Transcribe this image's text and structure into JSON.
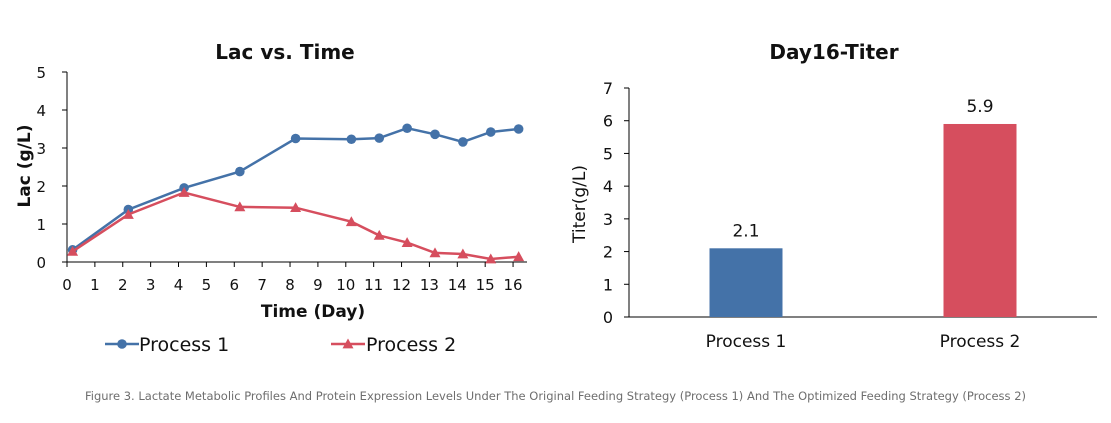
{
  "chart_data": [
    {
      "type": "line",
      "title": "Lac vs. Time",
      "xlabel": "Time (Day)",
      "ylabel": "Lac (g/L)",
      "xlim": [
        0,
        16.5
      ],
      "ylim": [
        0,
        5
      ],
      "xticks": [
        "0",
        "1",
        "2",
        "3",
        "4",
        "5",
        "6",
        "7",
        "8",
        "9",
        "10",
        "11",
        "12",
        "13",
        "14",
        "15",
        "16"
      ],
      "yticks": [
        "0",
        "1",
        "2",
        "3",
        "4",
        "5"
      ],
      "grid": false,
      "legend": "bottom",
      "series": [
        {
          "name": "Process 1",
          "color": "#4472a8",
          "marker": "circle",
          "points": [
            [
              0.2,
              0.32
            ],
            [
              2.2,
              1.38
            ],
            [
              4.2,
              1.95
            ],
            [
              6.2,
              2.38
            ],
            [
              8.2,
              3.25
            ],
            [
              10.2,
              3.23
            ],
            [
              11.2,
              3.26
            ],
            [
              12.2,
              3.52
            ],
            [
              13.2,
              3.36
            ],
            [
              14.2,
              3.16
            ],
            [
              15.2,
              3.42
            ],
            [
              16.2,
              3.5
            ]
          ]
        },
        {
          "name": "Process 2",
          "color": "#d64e5e",
          "marker": "triangle",
          "points": [
            [
              0.2,
              0.28
            ],
            [
              2.2,
              1.25
            ],
            [
              4.2,
              1.83
            ],
            [
              6.2,
              1.45
            ],
            [
              8.2,
              1.43
            ],
            [
              10.2,
              1.06
            ],
            [
              11.2,
              0.7
            ],
            [
              12.2,
              0.51
            ],
            [
              13.2,
              0.24
            ],
            [
              14.2,
              0.21
            ],
            [
              15.2,
              0.08
            ],
            [
              16.2,
              0.14
            ]
          ]
        }
      ]
    },
    {
      "type": "bar",
      "title": "Day16-Titer",
      "xlabel": "",
      "ylabel": "Titer(g/L)",
      "ylim": [
        0,
        7
      ],
      "yticks": [
        "0",
        "1",
        "2",
        "3",
        "4",
        "5",
        "6",
        "7"
      ],
      "grid": false,
      "categories": [
        "Process 1",
        "Process 2"
      ],
      "values": [
        2.1,
        5.9
      ],
      "data_labels": [
        "2.1",
        "5.9"
      ],
      "colors": [
        "#4472a8",
        "#d64e5e"
      ]
    }
  ],
  "caption": "Figure 3. Lactate Metabolic Profiles And Protein Expression Levels Under The Original Feeding Strategy (Process 1) And The Optimized Feeding Strategy (Process 2)"
}
